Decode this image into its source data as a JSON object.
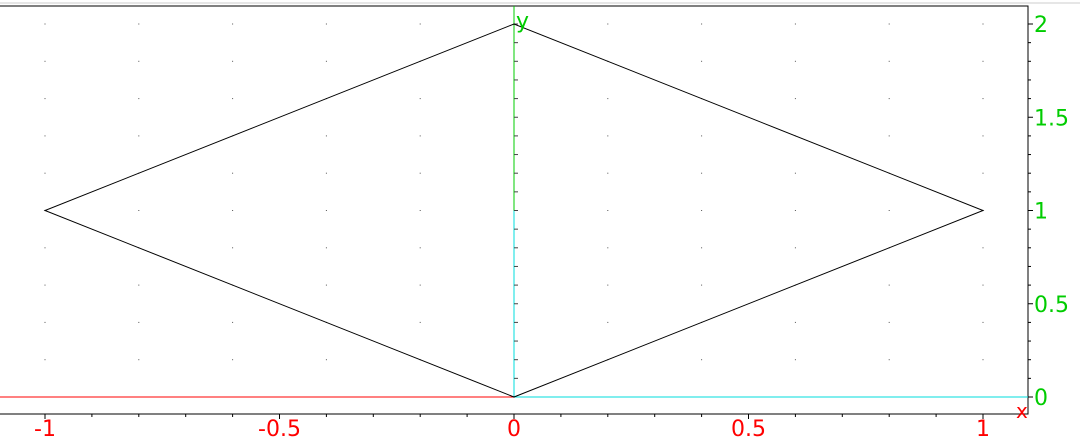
{
  "chart_data": {
    "type": "line",
    "title": "",
    "xlabel": "x",
    "ylabel": "y",
    "xlim": [
      -1.1,
      1.1
    ],
    "ylim": [
      -0.05,
      2.05
    ],
    "x_ticks": [
      -1,
      -0.5,
      0,
      0.5,
      1
    ],
    "x_tick_labels": [
      "-1",
      "-0.5",
      "0",
      "0.5",
      "1"
    ],
    "y_ticks": [
      0,
      0.5,
      1,
      1.5,
      2
    ],
    "y_tick_labels": [
      "0",
      "0.5",
      "1",
      "1.5",
      "2"
    ],
    "grid": "dotted",
    "series": [
      {
        "x": [
          0,
          1,
          0,
          -1,
          0
        ],
        "y": [
          0,
          1,
          2,
          1,
          0
        ],
        "color": "#000000"
      }
    ],
    "colors": {
      "x_axis": "#ff0000",
      "y_axis": "#00cc00",
      "positive_axis_overlay": "#00dddd",
      "frame": "#000000",
      "grid_dot": "#555555"
    }
  }
}
